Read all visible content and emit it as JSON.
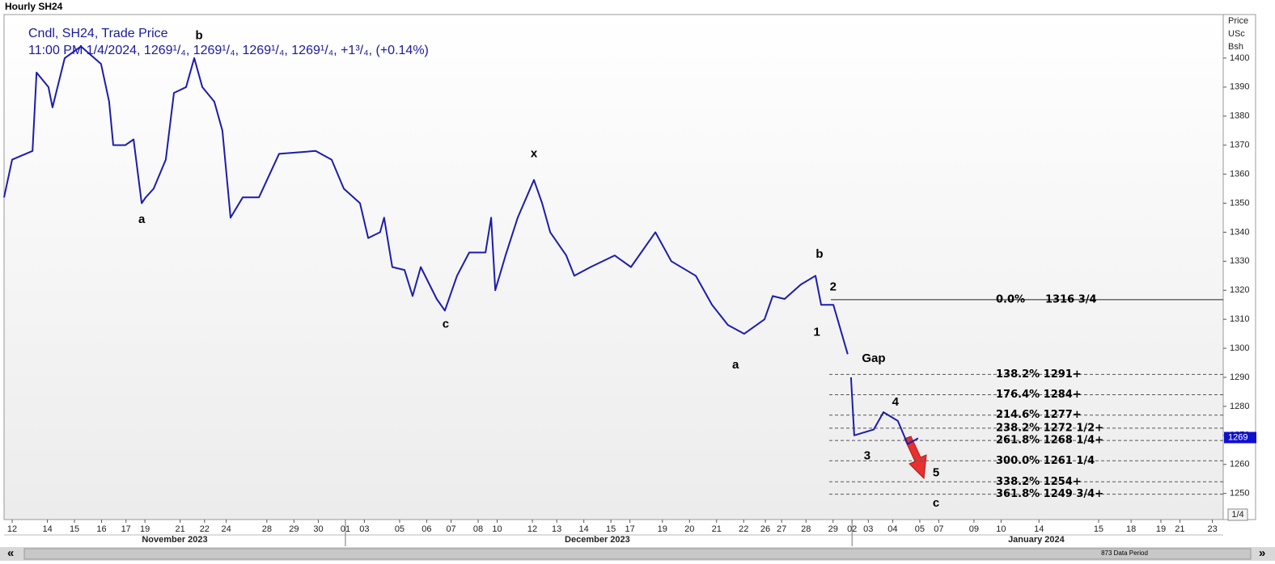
{
  "chart_data": {
    "type": "line",
    "title": "Hourly SH24",
    "legend_lines": [
      "Cndl, SH24, Trade Price",
      "11:00 PM 1/4/2024, 1269¹/₄, 1269¹/₄, 1269¹/₄, 1269¹/₄, +1³/₄, (+0.14%)"
    ],
    "axis_header": [
      "Price",
      "USc",
      "Bsh"
    ],
    "zoom": "1/4",
    "footer": "873 Data Period",
    "xlim": [
      0,
      45
    ],
    "ylim": [
      1241,
      1415
    ],
    "yticks": [
      1250,
      1260,
      1270,
      1280,
      1290,
      1300,
      1310,
      1320,
      1330,
      1340,
      1350,
      1360,
      1370,
      1380,
      1390,
      1400
    ],
    "xticks": [
      {
        "value": 0.3,
        "label": "12"
      },
      {
        "value": 1.6,
        "label": "14"
      },
      {
        "value": 2.6,
        "label": "15"
      },
      {
        "value": 3.6,
        "label": "16"
      },
      {
        "value": 4.5,
        "label": "17"
      },
      {
        "value": 5.2,
        "label": "19"
      },
      {
        "value": 6.5,
        "label": "21"
      },
      {
        "value": 7.4,
        "label": "22"
      },
      {
        "value": 8.2,
        "label": "24"
      },
      {
        "value": 9.7,
        "label": "28"
      },
      {
        "value": 10.7,
        "label": "29"
      },
      {
        "value": 11.6,
        "label": "30"
      },
      {
        "value": 12.6,
        "label": "01"
      },
      {
        "value": 13.3,
        "label": "03"
      },
      {
        "value": 14.6,
        "label": "05"
      },
      {
        "value": 15.6,
        "label": "06"
      },
      {
        "value": 16.5,
        "label": "07"
      },
      {
        "value": 17.5,
        "label": "08"
      },
      {
        "value": 18.2,
        "label": "10"
      },
      {
        "value": 19.5,
        "label": "12"
      },
      {
        "value": 20.4,
        "label": "13"
      },
      {
        "value": 21.4,
        "label": "14"
      },
      {
        "value": 22.4,
        "label": "15"
      },
      {
        "value": 23.1,
        "label": "17"
      },
      {
        "value": 24.3,
        "label": "19"
      },
      {
        "value": 25.3,
        "label": "20"
      },
      {
        "value": 26.3,
        "label": "21"
      },
      {
        "value": 27.3,
        "label": "22"
      },
      {
        "value": 28.1,
        "label": "26"
      },
      {
        "value": 28.7,
        "label": "27"
      },
      {
        "value": 29.6,
        "label": "28"
      },
      {
        "value": 30.6,
        "label": "29"
      },
      {
        "value": 31.3,
        "label": "02"
      },
      {
        "value": 31.9,
        "label": "03"
      },
      {
        "value": 32.8,
        "label": "04"
      },
      {
        "value": 33.8,
        "label": "05"
      },
      {
        "value": 34.5,
        "label": "07"
      },
      {
        "value": 35.8,
        "label": "09"
      },
      {
        "value": 36.8,
        "label": "10"
      },
      {
        "value": 38.2,
        "label": "14"
      },
      {
        "value": 40.4,
        "label": "15"
      },
      {
        "value": 41.6,
        "label": "18"
      },
      {
        "value": 42.7,
        "label": "19"
      },
      {
        "value": 43.4,
        "label": "21"
      },
      {
        "value": 44.6,
        "label": "23"
      }
    ],
    "months": [
      {
        "value": 6.3,
        "label": "November 2023"
      },
      {
        "value": 21.9,
        "label": "December 2023"
      },
      {
        "value": 38.1,
        "label": "January 2024"
      }
    ],
    "month_breaks": [
      12.6,
      31.3
    ],
    "series": [
      {
        "color": "#1c1cb0",
        "x": [
          0,
          0.3,
          1.05,
          1.2,
          1.64,
          1.79,
          2.24,
          2.84,
          3.58,
          3.88,
          4.03,
          4.48,
          4.78,
          5.08,
          5.23,
          5.52,
          5.97,
          6.27,
          6.72,
          7.02,
          7.32,
          7.76,
          8.06,
          8.36,
          8.81,
          9.41,
          10.15,
          11.5,
          12.09,
          12.54,
          13.14,
          13.44,
          13.88,
          14.03,
          14.33,
          14.78,
          15.08,
          15.38,
          15.97,
          16.27,
          16.72,
          17.17,
          17.77,
          17.98,
          18.13,
          18.51,
          18.96,
          19.56,
          19.86,
          20.16,
          20.75,
          21.05,
          21.65,
          22.54,
          23.14,
          24.04,
          24.63,
          25.53,
          26.13,
          26.72,
          27.32,
          28.07,
          28.37,
          28.81,
          29.41,
          29.95,
          30.16,
          30.61,
          31.14,
          31.2,
          31.26,
          31.38,
          32.1,
          32.46,
          32.99,
          33.35,
          33.74
        ],
        "values": [
          1352,
          1365,
          1368,
          1395,
          1390,
          1383,
          1400,
          1404,
          1398,
          1385,
          1370,
          1370,
          1372,
          1350,
          1352,
          1355,
          1365,
          1388,
          1390,
          1400,
          1390,
          1385,
          1375,
          1345,
          1352,
          1352,
          1367,
          1368,
          1365,
          1355,
          1350,
          1338,
          1340,
          1345,
          1328,
          1327,
          1318,
          1328,
          1317,
          1313,
          1325,
          1333,
          1333,
          1345,
          1320,
          1332,
          1345,
          1358,
          1350,
          1340,
          1332,
          1325,
          1328,
          1332,
          1328,
          1340,
          1330,
          1325,
          1315,
          1308,
          1305,
          1310,
          1318,
          1317,
          1322,
          1325,
          1315,
          1315,
          1298,
          null,
          1290,
          1270,
          1272,
          1278,
          1275,
          1267,
          1269
        ]
      }
    ],
    "price_tag": {
      "value": 1269.25,
      "label": "1269"
    },
    "fib_levels": [
      {
        "value": 1316.75,
        "pct": "0.0%",
        "label": "1316 3/4"
      },
      {
        "value": 1291,
        "label": "138.2% 1291+"
      },
      {
        "value": 1284,
        "label": "176.4% 1284+"
      },
      {
        "value": 1277,
        "label": "214.6% 1277+"
      },
      {
        "value": 1272.5,
        "label": "238.2% 1272 1/2+"
      },
      {
        "value": 1268.25,
        "label": "261.8% 1268 1/4+"
      },
      {
        "value": 1261.25,
        "label": "300.0% 1261 1/4"
      },
      {
        "value": 1254,
        "label": "338.2% 1254+"
      },
      {
        "value": 1249.75,
        "label": "361.8% 1249 3/4+"
      }
    ],
    "annotations": [
      {
        "text": "a",
        "x": 5.08,
        "y": 1344.3
      },
      {
        "text": "b",
        "x": 7.2,
        "y": 1407.6
      },
      {
        "text": "c",
        "x": 16.3,
        "y": 1308.2
      },
      {
        "text": "x",
        "x": 19.56,
        "y": 1367
      },
      {
        "text": "a",
        "x": 27.0,
        "y": 1294.2
      },
      {
        "text": "b",
        "x": 30.1,
        "y": 1332.3
      },
      {
        "text": "2",
        "x": 30.6,
        "y": 1321.1
      },
      {
        "text": "1",
        "x": 30.0,
        "y": 1305.4
      },
      {
        "text": "Gap",
        "x": 32.1,
        "y": 1296.4
      },
      {
        "text": "4",
        "x": 32.9,
        "y": 1281.3
      },
      {
        "text": "3",
        "x": 31.86,
        "y": 1262.9
      },
      {
        "text": "5",
        "x": 34.4,
        "y": 1257
      },
      {
        "text": "c",
        "x": 34.4,
        "y": 1246.6
      }
    ]
  }
}
